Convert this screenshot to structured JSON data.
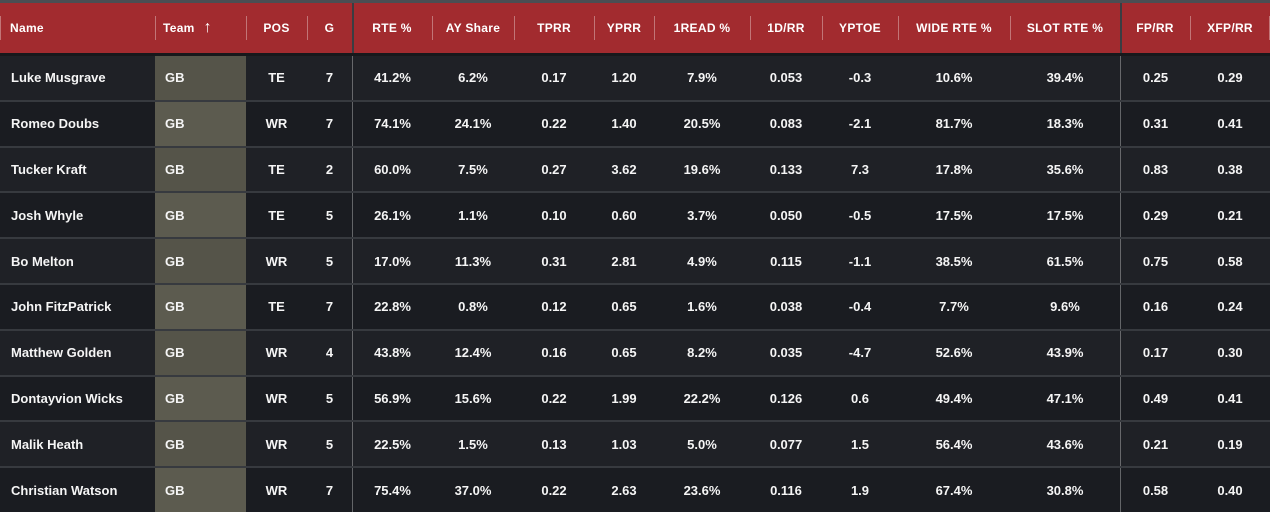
{
  "colors": {
    "header_red": "#A22B2F",
    "team_cell_olive": "#555449",
    "team_cell_olive_alt": "#5C5B4F",
    "row_bg": "#1F2126",
    "row_bg_alt": "#1A1C21"
  },
  "table": {
    "sort_icon": "↑",
    "columns": [
      {
        "key": "name",
        "label": "Name",
        "align": "left"
      },
      {
        "key": "team",
        "label": "Team",
        "align": "left",
        "sorted": "asc"
      },
      {
        "key": "pos",
        "label": "POS",
        "align": "center"
      },
      {
        "key": "g",
        "label": "G",
        "align": "center"
      },
      {
        "key": "rte",
        "label": "RTE %",
        "align": "center",
        "group_start": true
      },
      {
        "key": "ayshare",
        "label": "AY Share",
        "align": "center"
      },
      {
        "key": "tprr",
        "label": "TPRR",
        "align": "center"
      },
      {
        "key": "yprr",
        "label": "YPRR",
        "align": "center"
      },
      {
        "key": "read1",
        "label": "1READ %",
        "align": "center"
      },
      {
        "key": "drr",
        "label": "1D/RR",
        "align": "center"
      },
      {
        "key": "yptoe",
        "label": "YPTOE",
        "align": "center"
      },
      {
        "key": "widerte",
        "label": "WIDE RTE %",
        "align": "center"
      },
      {
        "key": "slotrte",
        "label": "SLOT RTE %",
        "align": "center"
      },
      {
        "key": "fprr",
        "label": "FP/RR",
        "align": "center",
        "group_start": true
      },
      {
        "key": "xfprr",
        "label": "XFP/RR",
        "align": "center"
      }
    ],
    "rows": [
      [
        "Luke Musgrave",
        "GB",
        "TE",
        "7",
        "41.2%",
        "6.2%",
        "0.17",
        "1.20",
        "7.9%",
        "0.053",
        "-0.3",
        "10.6%",
        "39.4%",
        "0.25",
        "0.29"
      ],
      [
        "Romeo Doubs",
        "GB",
        "WR",
        "7",
        "74.1%",
        "24.1%",
        "0.22",
        "1.40",
        "20.5%",
        "0.083",
        "-2.1",
        "81.7%",
        "18.3%",
        "0.31",
        "0.41"
      ],
      [
        "Tucker Kraft",
        "GB",
        "TE",
        "2",
        "60.0%",
        "7.5%",
        "0.27",
        "3.62",
        "19.6%",
        "0.133",
        "7.3",
        "17.8%",
        "35.6%",
        "0.83",
        "0.38"
      ],
      [
        "Josh Whyle",
        "GB",
        "TE",
        "5",
        "26.1%",
        "1.1%",
        "0.10",
        "0.60",
        "3.7%",
        "0.050",
        "-0.5",
        "17.5%",
        "17.5%",
        "0.29",
        "0.21"
      ],
      [
        "Bo Melton",
        "GB",
        "WR",
        "5",
        "17.0%",
        "11.3%",
        "0.31",
        "2.81",
        "4.9%",
        "0.115",
        "-1.1",
        "38.5%",
        "61.5%",
        "0.75",
        "0.58"
      ],
      [
        "John FitzPatrick",
        "GB",
        "TE",
        "7",
        "22.8%",
        "0.8%",
        "0.12",
        "0.65",
        "1.6%",
        "0.038",
        "-0.4",
        "7.7%",
        "9.6%",
        "0.16",
        "0.24"
      ],
      [
        "Matthew Golden",
        "GB",
        "WR",
        "4",
        "43.8%",
        "12.4%",
        "0.16",
        "0.65",
        "8.2%",
        "0.035",
        "-4.7",
        "52.6%",
        "43.9%",
        "0.17",
        "0.30"
      ],
      [
        "Dontayvion Wicks",
        "GB",
        "WR",
        "5",
        "56.9%",
        "15.6%",
        "0.22",
        "1.99",
        "22.2%",
        "0.126",
        "0.6",
        "49.4%",
        "47.1%",
        "0.49",
        "0.41"
      ],
      [
        "Malik Heath",
        "GB",
        "WR",
        "5",
        "22.5%",
        "1.5%",
        "0.13",
        "1.03",
        "5.0%",
        "0.077",
        "1.5",
        "56.4%",
        "43.6%",
        "0.21",
        "0.19"
      ],
      [
        "Christian Watson",
        "GB",
        "WR",
        "7",
        "75.4%",
        "37.0%",
        "0.22",
        "2.63",
        "23.6%",
        "0.116",
        "1.9",
        "67.4%",
        "30.8%",
        "0.58",
        "0.40"
      ]
    ]
  }
}
